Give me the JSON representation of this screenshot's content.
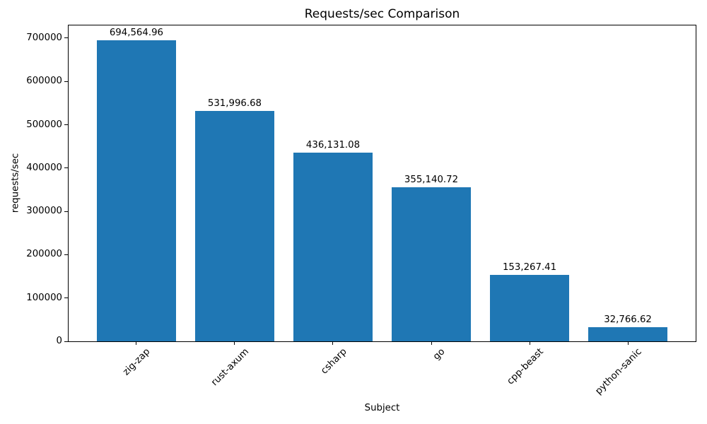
{
  "chart_data": {
    "type": "bar",
    "title": "Requests/sec Comparison",
    "xlabel": "Subject",
    "ylabel": "requests/sec",
    "categories": [
      "zig-zap",
      "rust-axum",
      "csharp",
      "go",
      "cpp-beast",
      "python-sanic"
    ],
    "values": [
      694564.96,
      531996.68,
      436131.08,
      355140.72,
      153267.41,
      32766.62
    ],
    "value_labels": [
      "694,564.96",
      "531,996.68",
      "436,131.08",
      "355,140.72",
      "153,267.41",
      "32,766.62"
    ],
    "yticks": [
      0,
      100000,
      200000,
      300000,
      400000,
      500000,
      600000,
      700000
    ],
    "ylim": [
      0,
      729293
    ],
    "xlim": [
      -0.69,
      5.69
    ],
    "bar_width_fraction": 0.8,
    "x_tick_rotation_deg": 45,
    "grid": false,
    "bar_color": "#1f77b4",
    "text_color": "#000000",
    "background_color": "#ffffff"
  }
}
